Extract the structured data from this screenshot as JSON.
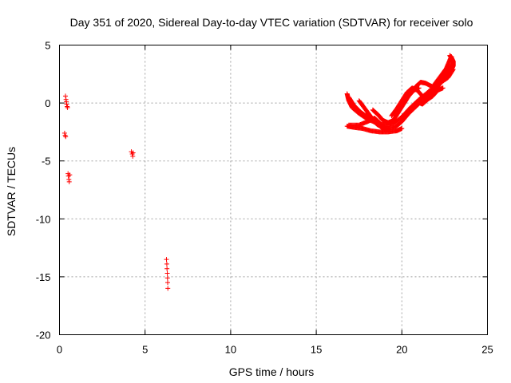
{
  "chart_data": {
    "type": "scatter",
    "title": "Day 351 of 2020, Sidereal Day-to-day VTEC variation (SDTVAR) for receiver solo",
    "xlabel": "GPS time / hours",
    "ylabel": "SDTVAR / TECUs",
    "xlim": [
      0,
      25
    ],
    "ylim": [
      -20,
      5
    ],
    "xticks": [
      0,
      5,
      10,
      15,
      20,
      25
    ],
    "yticks": [
      5,
      0,
      -5,
      -10,
      -15,
      -20
    ],
    "grid": true,
    "marker": "plus",
    "series": [
      {
        "name": "SDTVAR",
        "color": "#ff0000",
        "points": [
          [
            0.35,
            0.6
          ],
          [
            0.38,
            0.3
          ],
          [
            0.4,
            0.1
          ],
          [
            0.42,
            -0.1
          ],
          [
            0.45,
            -0.3
          ],
          [
            0.47,
            -0.4
          ],
          [
            0.3,
            -2.6
          ],
          [
            0.33,
            -2.8
          ],
          [
            0.36,
            -2.9
          ],
          [
            0.5,
            -6.1
          ],
          [
            0.52,
            -6.3
          ],
          [
            0.55,
            -6.6
          ],
          [
            0.57,
            -6.8
          ],
          [
            0.6,
            -6.2
          ],
          [
            4.2,
            -4.2
          ],
          [
            4.25,
            -4.4
          ],
          [
            4.28,
            -4.6
          ],
          [
            4.3,
            -4.3
          ],
          [
            6.25,
            -13.5
          ],
          [
            6.27,
            -13.9
          ],
          [
            6.28,
            -14.3
          ],
          [
            6.3,
            -14.7
          ],
          [
            6.31,
            -15.1
          ],
          [
            6.32,
            -15.5
          ],
          [
            6.33,
            -16.0
          ]
        ],
        "dense_segments": [
          [
            [
              16.8,
              0.8
            ],
            [
              16.9,
              0.2
            ],
            [
              17.1,
              -0.4
            ],
            [
              17.5,
              -0.9
            ],
            [
              18.0,
              -1.4
            ],
            [
              18.5,
              -1.7
            ],
            [
              19.0,
              -1.9
            ],
            [
              19.5,
              -1.8
            ],
            [
              20.0,
              -1.2
            ],
            [
              20.5,
              -0.4
            ],
            [
              21.0,
              0.3
            ],
            [
              21.5,
              0.9
            ],
            [
              22.0,
              1.6
            ],
            [
              22.5,
              2.4
            ],
            [
              22.9,
              3.3
            ]
          ],
          [
            [
              16.9,
              0.5
            ],
            [
              17.2,
              -0.2
            ],
            [
              17.6,
              -0.8
            ],
            [
              18.1,
              -1.3
            ],
            [
              18.6,
              -1.9
            ],
            [
              19.1,
              -2.2
            ],
            [
              19.6,
              -2.1
            ],
            [
              20.0,
              -1.6
            ],
            [
              20.4,
              -0.9
            ],
            [
              20.9,
              -0.2
            ],
            [
              21.4,
              0.5
            ],
            [
              21.9,
              1.2
            ],
            [
              22.4,
              1.9
            ],
            [
              22.8,
              2.8
            ]
          ],
          [
            [
              16.8,
              -2.0
            ],
            [
              17.2,
              -2.1
            ],
            [
              17.7,
              -2.2
            ],
            [
              18.2,
              -2.4
            ],
            [
              18.7,
              -2.5
            ],
            [
              19.2,
              -2.5
            ],
            [
              19.7,
              -2.4
            ],
            [
              20.0,
              -2.2
            ]
          ],
          [
            [
              16.9,
              -1.9
            ],
            [
              17.5,
              -1.9
            ],
            [
              18.0,
              -1.6
            ],
            [
              18.4,
              -1.3
            ],
            [
              18.7,
              -1.7
            ],
            [
              19.0,
              -2.3
            ]
          ],
          [
            [
              18.3,
              -0.6
            ],
            [
              18.6,
              -1.0
            ],
            [
              18.9,
              -1.5
            ],
            [
              19.2,
              -1.7
            ],
            [
              19.5,
              -1.5
            ],
            [
              19.8,
              -0.8
            ],
            [
              20.1,
              -0.1
            ],
            [
              20.4,
              0.6
            ],
            [
              20.7,
              1.1
            ],
            [
              21.0,
              1.3
            ]
          ],
          [
            [
              17.5,
              0.2
            ],
            [
              17.8,
              -0.4
            ],
            [
              18.1,
              -1.0
            ],
            [
              18.4,
              -1.6
            ],
            [
              18.8,
              -2.1
            ],
            [
              19.3,
              -2.3
            ]
          ],
          [
            [
              19.4,
              -1.1
            ],
            [
              19.7,
              -0.5
            ],
            [
              20.0,
              0.2
            ],
            [
              20.3,
              0.9
            ],
            [
              20.6,
              1.3
            ],
            [
              20.9,
              1.1
            ],
            [
              21.2,
              0.6
            ],
            [
              21.5,
              0.5
            ],
            [
              21.9,
              1.0
            ],
            [
              22.3,
              1.8
            ],
            [
              22.7,
              2.2
            ],
            [
              23.0,
              2.9
            ]
          ],
          [
            [
              20.8,
              1.4
            ],
            [
              21.1,
              1.8
            ],
            [
              21.4,
              1.7
            ],
            [
              21.8,
              1.4
            ],
            [
              22.2,
              2.2
            ],
            [
              22.6,
              3.0
            ],
            [
              22.8,
              3.7
            ],
            [
              22.9,
              4.0
            ]
          ],
          [
            [
              22.7,
              2.4
            ],
            [
              22.8,
              2.6
            ],
            [
              22.9,
              2.9
            ],
            [
              23.0,
              3.2
            ],
            [
              23.0,
              3.6
            ],
            [
              22.9,
              3.9
            ],
            [
              22.8,
              4.1
            ]
          ],
          [
            [
              20.9,
              0.1
            ],
            [
              21.2,
              -0.1
            ],
            [
              21.5,
              0.3
            ],
            [
              21.8,
              0.6
            ],
            [
              22.1,
              1.1
            ],
            [
              22.4,
              1.3
            ]
          ]
        ]
      }
    ]
  }
}
